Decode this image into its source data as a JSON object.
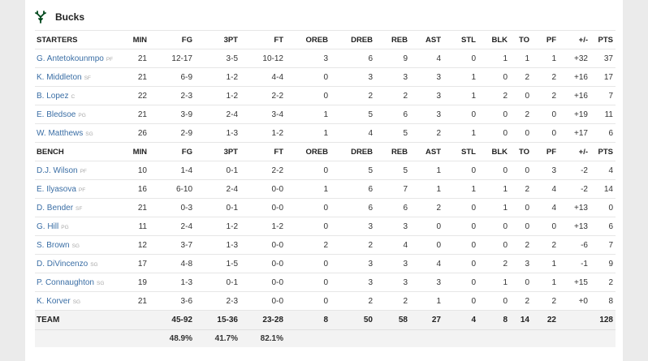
{
  "team": {
    "name": "Bucks",
    "logo_icon": "deer-antlers-icon",
    "logo_color": "#00471b"
  },
  "columns": [
    "MIN",
    "FG",
    "3PT",
    "FT",
    "OREB",
    "DREB",
    "REB",
    "AST",
    "STL",
    "BLK",
    "TO",
    "PF",
    "+/-",
    "PTS"
  ],
  "starters_label": "STARTERS",
  "bench_label": "BENCH",
  "starters": [
    {
      "name": "G. Antetokounmpo",
      "pos": "PF",
      "stats": [
        "21",
        "12-17",
        "3-5",
        "10-12",
        "3",
        "6",
        "9",
        "4",
        "0",
        "1",
        "1",
        "1",
        "+32",
        "37"
      ]
    },
    {
      "name": "K. Middleton",
      "pos": "SF",
      "stats": [
        "21",
        "6-9",
        "1-2",
        "4-4",
        "0",
        "3",
        "3",
        "3",
        "1",
        "0",
        "2",
        "2",
        "+16",
        "17"
      ]
    },
    {
      "name": "B. Lopez",
      "pos": "C",
      "stats": [
        "22",
        "2-3",
        "1-2",
        "2-2",
        "0",
        "2",
        "2",
        "3",
        "1",
        "2",
        "0",
        "2",
        "+16",
        "7"
      ]
    },
    {
      "name": "E. Bledsoe",
      "pos": "PG",
      "stats": [
        "21",
        "3-9",
        "2-4",
        "3-4",
        "1",
        "5",
        "6",
        "3",
        "0",
        "0",
        "2",
        "0",
        "+19",
        "11"
      ]
    },
    {
      "name": "W. Matthews",
      "pos": "SG",
      "stats": [
        "26",
        "2-9",
        "1-3",
        "1-2",
        "1",
        "4",
        "5",
        "2",
        "1",
        "0",
        "0",
        "0",
        "+17",
        "6"
      ]
    }
  ],
  "bench": [
    {
      "name": "D.J. Wilson",
      "pos": "PF",
      "stats": [
        "10",
        "1-4",
        "0-1",
        "2-2",
        "0",
        "5",
        "5",
        "1",
        "0",
        "0",
        "0",
        "3",
        "-2",
        "4"
      ]
    },
    {
      "name": "E. Ilyasova",
      "pos": "PF",
      "stats": [
        "16",
        "6-10",
        "2-4",
        "0-0",
        "1",
        "6",
        "7",
        "1",
        "1",
        "1",
        "2",
        "4",
        "-2",
        "14"
      ]
    },
    {
      "name": "D. Bender",
      "pos": "SF",
      "stats": [
        "21",
        "0-3",
        "0-1",
        "0-0",
        "0",
        "6",
        "6",
        "2",
        "0",
        "1",
        "0",
        "4",
        "+13",
        "0"
      ]
    },
    {
      "name": "G. Hill",
      "pos": "PG",
      "stats": [
        "11",
        "2-4",
        "1-2",
        "1-2",
        "0",
        "3",
        "3",
        "0",
        "0",
        "0",
        "0",
        "0",
        "+13",
        "6"
      ]
    },
    {
      "name": "S. Brown",
      "pos": "SG",
      "stats": [
        "12",
        "3-7",
        "1-3",
        "0-0",
        "2",
        "2",
        "4",
        "0",
        "0",
        "0",
        "2",
        "2",
        "-6",
        "7"
      ]
    },
    {
      "name": "D. DiVincenzo",
      "pos": "SG",
      "stats": [
        "17",
        "4-8",
        "1-5",
        "0-0",
        "0",
        "3",
        "3",
        "4",
        "0",
        "2",
        "3",
        "1",
        "-1",
        "9"
      ]
    },
    {
      "name": "P. Connaughton",
      "pos": "SG",
      "stats": [
        "19",
        "1-3",
        "0-1",
        "0-0",
        "0",
        "3",
        "3",
        "3",
        "0",
        "1",
        "0",
        "1",
        "+15",
        "2"
      ]
    },
    {
      "name": "K. Korver",
      "pos": "SG",
      "stats": [
        "21",
        "3-6",
        "2-3",
        "0-0",
        "0",
        "2",
        "2",
        "1",
        "0",
        "0",
        "2",
        "2",
        "+0",
        "8"
      ]
    }
  ],
  "team_totals": {
    "label": "TEAM",
    "stats": [
      "",
      "45-92",
      "15-36",
      "23-28",
      "8",
      "50",
      "58",
      "27",
      "4",
      "8",
      "14",
      "22",
      "",
      "128"
    ]
  },
  "team_pcts": {
    "stats": [
      "",
      "48.9%",
      "41.7%",
      "82.1%",
      "",
      "",
      "",
      "",
      "",
      "",
      "",
      "",
      "",
      ""
    ]
  }
}
